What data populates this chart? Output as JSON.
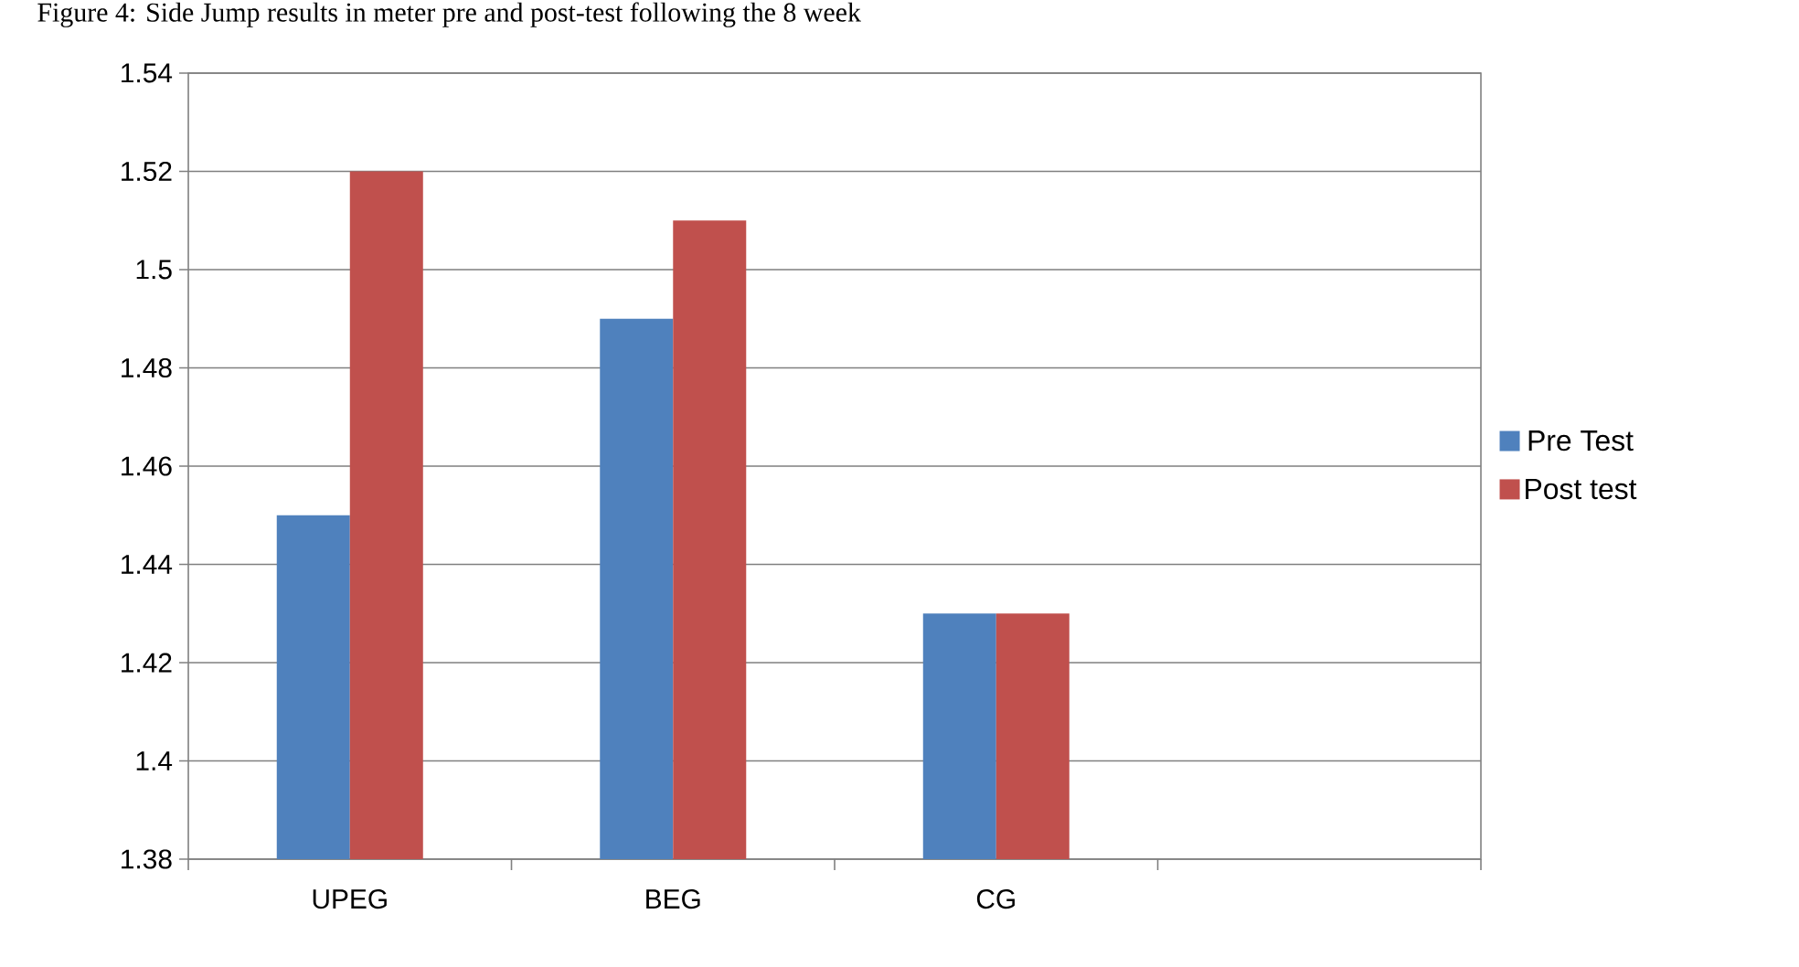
{
  "chart_data": {
    "type": "bar",
    "title": "Figure 4: Side Jump results in meter pre and post-test following the 8 week",
    "categories": [
      "UPEG",
      "BEG",
      "CG",
      null
    ],
    "series": [
      {
        "name": "Pre Test",
        "color": "#4f81bd",
        "values": [
          1.45,
          1.49,
          1.43,
          null
        ]
      },
      {
        "name": "Post test",
        "color": "#c0504d",
        "values": [
          1.52,
          1.51,
          1.43,
          null
        ]
      }
    ],
    "ylim": [
      1.38,
      1.54
    ],
    "yticks": [
      1.38,
      1.4,
      1.42,
      1.44,
      1.46,
      1.48,
      1.5,
      1.52,
      1.54
    ],
    "grid": "y",
    "legend": "right"
  }
}
